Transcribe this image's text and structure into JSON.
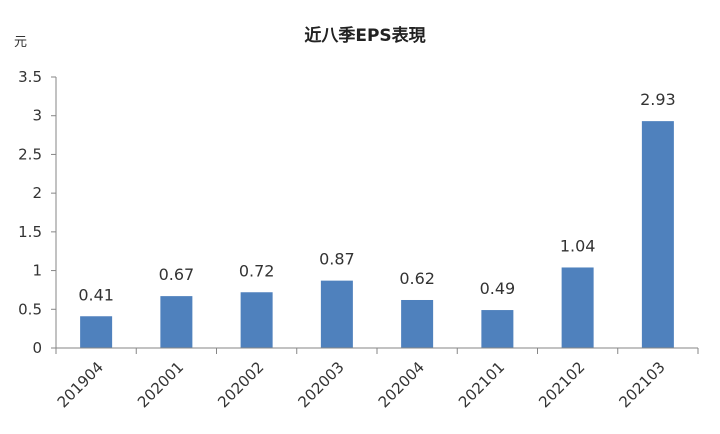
{
  "chart_data": {
    "type": "bar",
    "title": "近八季EPS表現",
    "unit_label": "元",
    "categories": [
      "201904",
      "202001",
      "202002",
      "202003",
      "202004",
      "202101",
      "202102",
      "202103"
    ],
    "values": [
      0.41,
      0.67,
      0.72,
      0.87,
      0.62,
      0.49,
      1.04,
      2.93
    ],
    "value_labels": [
      "0.41",
      "0.67",
      "0.72",
      "0.87",
      "0.62",
      "0.49",
      "1.04",
      "2.93"
    ],
    "ylim": [
      0,
      3.5
    ],
    "yticks": [
      0,
      0.5,
      1,
      1.5,
      2,
      2.5,
      3,
      3.5
    ],
    "ytick_labels": [
      "0",
      "0.5",
      "1",
      "1.5",
      "2",
      "2.5",
      "3",
      "3.5"
    ],
    "bar_color": "#4f81bd",
    "axis_color": "#868686",
    "grid": false,
    "legend": "none"
  }
}
